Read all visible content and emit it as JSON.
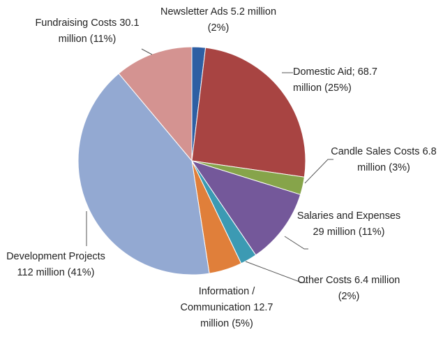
{
  "chart_data": {
    "type": "pie",
    "categories": [
      "Newsletter Ads",
      "Domestic Aid;",
      "Candle Sales Costs",
      "Salaries and Expenses",
      "Other Costs",
      "Information / Communication",
      "Development Projects",
      "Fundraising Costs"
    ],
    "values": [
      5.2,
      68.7,
      6.8,
      29,
      6.4,
      12.7,
      112,
      30.1
    ],
    "value_labels": [
      "5.2 million (2%)",
      "68.7 million (25%)",
      "6.8 million (3%)",
      "29 million (11%)",
      "6.4 million (2%)",
      "12.7 million (5%)",
      "112 million (41%)",
      "30.1 million (11%)"
    ],
    "colors": [
      "#2e5fa3",
      "#a84442",
      "#86a44a",
      "#74589a",
      "#3c9ab3",
      "#e07f3a",
      "#93a9d2",
      "#d49391"
    ]
  }
}
